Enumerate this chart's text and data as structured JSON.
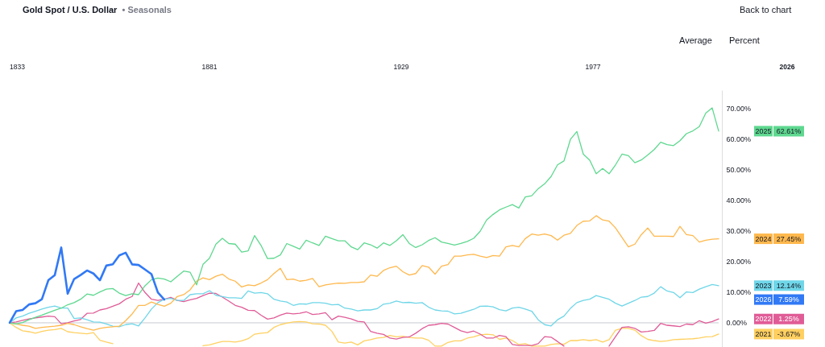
{
  "chart_data": {
    "type": "line",
    "title": "Gold Spot / U.S. Dollar",
    "subtitle": "• Seasonals",
    "annotations": [
      "Back to chart",
      "Average",
      "Percent",
      "1833",
      "1881",
      "1929",
      "1977",
      "2026",
      "7.59%",
      "62.61%",
      "27.45%",
      "12.14%",
      "1.25%",
      "-3.67%"
    ],
    "legend": "right",
    "categories": [
      null,
      null,
      null,
      null,
      null,
      null,
      null,
      null,
      null,
      null,
      null,
      null,
      null,
      null,
      null,
      null,
      null,
      null,
      null,
      null,
      null,
      null,
      null,
      null,
      null,
      null,
      null,
      null,
      null,
      null,
      null,
      null,
      null,
      null,
      null,
      null,
      null,
      null,
      null,
      null,
      null,
      null,
      null,
      null,
      null,
      null,
      null,
      null,
      null,
      null,
      null,
      null,
      null,
      null,
      null,
      null,
      null,
      null,
      null,
      null,
      null,
      null,
      null,
      null,
      null,
      null,
      null,
      null,
      null,
      null,
      null,
      null,
      null,
      null,
      null,
      null,
      null,
      null,
      null,
      null,
      null,
      null,
      null,
      null,
      null,
      null,
      null,
      null,
      null,
      null,
      null,
      null,
      null,
      null,
      null,
      null,
      null,
      null,
      null,
      null,
      null,
      null,
      null,
      null,
      null,
      null,
      null,
      null,
      null,
      null,
      null
    ],
    "ylim": [
      -7.9,
      76
    ],
    "yticks": [
      {
        "value": 0,
        "label": "0.00%"
      },
      {
        "value": 10,
        "label": "10.00%"
      },
      {
        "value": 20,
        "label": "20.00%"
      },
      {
        "value": 30,
        "label": "30.00%"
      },
      {
        "value": 40,
        "label": "40.00%"
      },
      {
        "value": 50,
        "label": "50.00%"
      },
      {
        "value": 60,
        "label": "60.00%"
      },
      {
        "value": 70,
        "label": "70.00%"
      }
    ],
    "ref_lines": [
      {
        "axis": "y",
        "value": 0,
        "color": "#c8cacf"
      }
    ],
    "series": [
      {
        "name": "2026",
        "color": "#3179f5",
        "values": [
          0,
          3.8,
          4.2,
          6.0,
          6.4,
          7.7,
          13.9,
          15.6,
          24.6,
          9.5,
          14.3,
          15.6,
          17.1,
          16.1,
          13.9,
          18.7,
          19.1,
          22.0,
          22.9,
          19.1,
          18.9,
          17.4,
          15.9,
          9.9,
          7.59,
          null,
          null,
          null,
          null,
          null,
          null,
          null,
          null,
          null,
          null,
          null,
          null,
          null,
          null,
          null,
          null,
          null,
          null,
          null,
          null,
          null,
          null,
          null,
          null,
          null,
          null,
          null,
          null,
          null,
          null,
          null,
          null,
          null,
          null,
          null,
          null,
          null,
          null,
          null,
          null,
          null,
          null,
          null,
          null,
          null,
          null,
          null,
          null,
          null,
          null,
          null,
          null,
          null,
          null,
          null,
          null,
          null,
          null,
          null,
          null,
          null,
          null,
          null,
          null,
          null,
          null,
          null,
          null,
          null,
          null,
          null,
          null,
          null,
          null,
          null,
          null,
          null,
          null,
          null,
          null,
          null,
          null,
          null,
          null,
          null,
          null
        ]
      },
      {
        "name": "2025",
        "color": "#5ed88f",
        "values": [
          0,
          -0.4,
          0.1,
          1.0,
          1.8,
          2.5,
          3.3,
          4.1,
          4.8,
          5.9,
          6.6,
          7.7,
          9.4,
          9.0,
          10.1,
          11.0,
          11.2,
          9.7,
          8.9,
          9.5,
          9.2,
          12.1,
          14.1,
          14.6,
          14.3,
          13.4,
          15.2,
          16.9,
          16.5,
          12.4,
          19.1,
          21.1,
          25.7,
          27.6,
          25.9,
          25.7,
          23.1,
          23.5,
          28.5,
          25.3,
          21.0,
          21.1,
          22.2,
          25.9,
          25.0,
          24.1,
          27.0,
          26.1,
          25.3,
          28.3,
          27.5,
          26.8,
          26.8,
          24.8,
          23.9,
          26.1,
          25.5,
          24.4,
          26.1,
          25.3,
          26.8,
          28.8,
          25.9,
          24.6,
          25.5,
          26.9,
          27.8,
          26.4,
          25.9,
          25.4,
          25.9,
          26.6,
          27.6,
          29.9,
          33.6,
          35.4,
          36.9,
          37.8,
          38.6,
          37.5,
          41.1,
          41.5,
          43.8,
          45.4,
          47.8,
          51.6,
          52.9,
          59.9,
          62.5,
          55.1,
          53.1,
          48.7,
          50.4,
          48.7,
          51.6,
          55.1,
          54.6,
          52.3,
          53.2,
          54.8,
          56.6,
          59.0,
          58.2,
          57.9,
          59.5,
          61.8,
          62.7,
          64.1,
          68.5,
          70.2,
          62.61
        ]
      },
      {
        "name": "2024",
        "color": "#ffb84d",
        "values": [
          0,
          -0.4,
          -0.8,
          -1.1,
          -1.8,
          -1.5,
          -1.3,
          -1.1,
          -0.8,
          -0.2,
          -0.6,
          -1.3,
          -1.9,
          -2.4,
          -1.8,
          -1.5,
          -1.3,
          -1.1,
          0.7,
          2.9,
          5.7,
          5.7,
          6.8,
          6.0,
          5.4,
          6.4,
          8.6,
          9.2,
          10.8,
          13.6,
          14.7,
          14.1,
          15.2,
          15.9,
          14.3,
          13.6,
          11.7,
          12.4,
          12.1,
          13.0,
          14.1,
          16.1,
          17.8,
          14.1,
          14.3,
          13.6,
          13.9,
          14.5,
          11.8,
          12.4,
          12.7,
          13.0,
          12.9,
          13.2,
          13.2,
          13.4,
          15.6,
          15.2,
          17.1,
          18.0,
          18.5,
          16.7,
          15.6,
          16.1,
          18.7,
          18.2,
          15.9,
          18.5,
          19.0,
          21.8,
          21.8,
          22.2,
          22.4,
          21.8,
          21.3,
          22.0,
          21.8,
          24.8,
          25.3,
          24.8,
          27.5,
          29.0,
          28.6,
          29.0,
          28.5,
          27.0,
          28.6,
          29.2,
          31.8,
          33.2,
          33.3,
          35.0,
          33.6,
          33.2,
          31.0,
          27.9,
          24.8,
          25.7,
          28.8,
          31.0,
          28.3,
          28.3,
          28.3,
          28.2,
          31.5,
          28.8,
          28.5,
          26.4,
          27.0,
          27.3,
          27.45
        ]
      },
      {
        "name": "2023",
        "color": "#6fd6e8",
        "values": [
          0,
          1.6,
          2.2,
          3.1,
          3.8,
          4.5,
          5.1,
          5.5,
          4.8,
          4.8,
          1.4,
          1.6,
          1.0,
          0.3,
          0.2,
          -0.4,
          -1.1,
          -1.3,
          -0.6,
          -0.3,
          -1.0,
          1.6,
          4.5,
          6.6,
          7.7,
          8.0,
          7.3,
          7.3,
          9.2,
          9.5,
          9.5,
          10.5,
          9.0,
          8.6,
          8.2,
          8.2,
          8.0,
          10.4,
          9.7,
          9.9,
          9.5,
          7.7,
          7.1,
          6.8,
          5.7,
          6.2,
          6.1,
          6.6,
          6.6,
          6.4,
          5.9,
          6.0,
          4.8,
          4.5,
          3.9,
          4.2,
          4.2,
          4.6,
          6.1,
          6.4,
          7.1,
          6.6,
          6.7,
          6.4,
          6.6,
          5.1,
          4.2,
          3.9,
          3.8,
          2.9,
          3.1,
          3.8,
          4.4,
          5.4,
          5.5,
          5.2,
          4.3,
          3.9,
          4.8,
          5.1,
          4.5,
          3.8,
          1.0,
          -0.6,
          -1.0,
          1.0,
          2.2,
          4.7,
          6.6,
          7.3,
          7.7,
          8.9,
          8.3,
          7.7,
          6.4,
          5.5,
          6.4,
          7.3,
          8.4,
          8.6,
          9.7,
          11.8,
          10.4,
          9.9,
          8.2,
          10.1,
          9.9,
          11.0,
          11.8,
          12.5,
          12.14
        ]
      },
      {
        "name": "2022",
        "color": "#e05c97",
        "values": [
          0,
          0.3,
          0.8,
          1.3,
          1.6,
          1.9,
          2.2,
          2.0,
          -0.3,
          0.0,
          0.6,
          1.1,
          3.1,
          3.2,
          4.2,
          4.6,
          5.4,
          6.2,
          7.7,
          8.6,
          13.0,
          9.9,
          7.7,
          7.3,
          7.7,
          8.3,
          7.3,
          6.9,
          7.5,
          8.0,
          8.9,
          9.7,
          9.6,
          8.4,
          7.1,
          5.7,
          5.1,
          4.1,
          4.0,
          2.5,
          1.2,
          1.6,
          2.5,
          3.2,
          2.9,
          3.1,
          3.6,
          2.7,
          2.9,
          3.3,
          1.0,
          2.2,
          1.8,
          1.3,
          0.5,
          0.3,
          -2.8,
          -3.4,
          -3.8,
          -5.0,
          -5.3,
          -4.8,
          -4.6,
          -3.4,
          -1.9,
          -0.8,
          -0.6,
          -0.2,
          -0.4,
          -1.5,
          -2.6,
          -3.2,
          -2.7,
          -3.7,
          -5.0,
          -5.0,
          -4.1,
          -4.5,
          -7.1,
          -7.4,
          -7.4,
          -7.4,
          -6.8,
          -4.5,
          -4.7,
          -6.1,
          -7.6,
          null,
          null,
          null,
          null,
          null,
          null,
          -7.6,
          -4.5,
          -1.5,
          -1.3,
          -1.8,
          -3.0,
          -2.8,
          -2.5,
          -0.2,
          -0.8,
          -1.0,
          -1.2,
          -0.4,
          -0.6,
          0.7,
          -0.1,
          0.4,
          1.25
        ]
      },
      {
        "name": "2021",
        "color": "#ffd060",
        "values": [
          0,
          -1.5,
          -2.6,
          -2.9,
          -3.4,
          -2.8,
          -2.4,
          -2.2,
          -1.8,
          -2.9,
          -3.2,
          -3.4,
          -3.6,
          -3.2,
          -5.7,
          -6.3,
          -6.8,
          null,
          null,
          null,
          null,
          null,
          null,
          null,
          null,
          null,
          null,
          null,
          null,
          null,
          -7.5,
          -7.2,
          -6.6,
          -6.1,
          -6.1,
          -6.3,
          -5.9,
          -5.2,
          -3.7,
          -3.4,
          -3.2,
          -1.5,
          -0.6,
          -0.1,
          0.3,
          0.4,
          0.3,
          -0.3,
          -0.4,
          -0.8,
          -2.8,
          -6.3,
          -6.6,
          -6.3,
          -7.2,
          -5.9,
          -5.5,
          -5.0,
          -4.8,
          -4.1,
          -4.6,
          -4.4,
          -4.8,
          -5.0,
          -5.0,
          -5.7,
          -7.6,
          -7.6,
          -6.4,
          -5.9,
          -5.9,
          -5.0,
          -4.6,
          -3.9,
          -3.7,
          -3.9,
          -5.4,
          -5.0,
          -5.8,
          -7.1,
          -6.8,
          -7.6,
          -7.6,
          -7.6,
          -7.1,
          -6.8,
          -7.0,
          -5.8,
          -5.8,
          -5.5,
          -5.8,
          -5.5,
          -6.3,
          -5.5,
          -2.4,
          -1.8,
          -1.8,
          -2.4,
          -4.2,
          -5.4,
          -5.8,
          -6.1,
          -5.9,
          -5.5,
          -5.4,
          -5.3,
          -5.2,
          -5.0,
          -4.6,
          -4.5,
          -3.67
        ]
      }
    ]
  }
}
